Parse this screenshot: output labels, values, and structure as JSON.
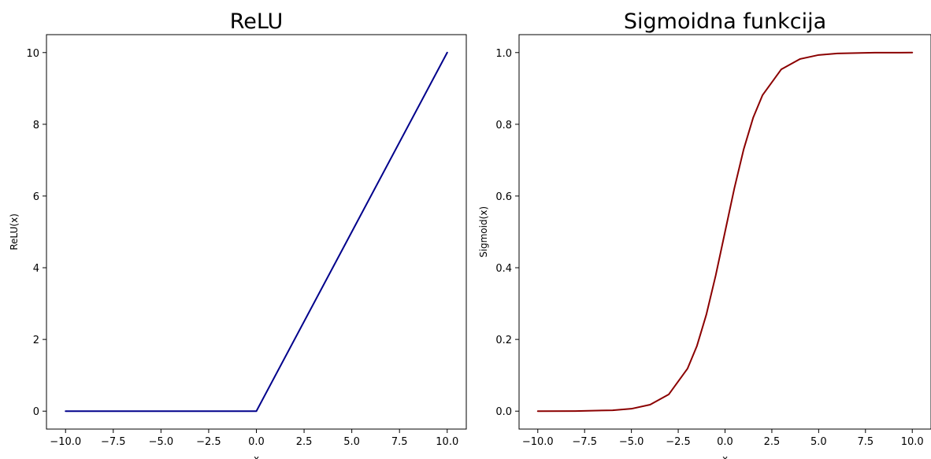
{
  "chart_data": [
    {
      "type": "line",
      "title": "ReLU",
      "xlabel": "x",
      "ylabel": "ReLU(x)",
      "xlim": [
        -11.0,
        11.0
      ],
      "ylim": [
        -0.5,
        10.5
      ],
      "xticks": [
        -10.0,
        -7.5,
        -5.0,
        -2.5,
        0.0,
        2.5,
        5.0,
        7.5,
        10.0
      ],
      "xtick_labels": [
        "−10.0",
        "−7.5",
        "−5.0",
        "−2.5",
        "0.0",
        "2.5",
        "5.0",
        "7.5",
        "10.0"
      ],
      "yticks": [
        0,
        2,
        4,
        6,
        8,
        10
      ],
      "ytick_labels": [
        "0",
        "2",
        "4",
        "6",
        "8",
        "10"
      ],
      "grid": false,
      "series": [
        {
          "color": "#00008b",
          "x": [
            -10,
            -5,
            0,
            5,
            10
          ],
          "y": [
            0,
            0,
            0,
            5,
            10
          ]
        }
      ]
    },
    {
      "type": "line",
      "title": "Sigmoidna funkcija",
      "xlabel": "x",
      "ylabel": "Sigmoid(x)",
      "xlim": [
        -11.0,
        11.0
      ],
      "ylim": [
        -0.05,
        1.05
      ],
      "xticks": [
        -10.0,
        -7.5,
        -5.0,
        -2.5,
        0.0,
        2.5,
        5.0,
        7.5,
        10.0
      ],
      "xtick_labels": [
        "−10.0",
        "−7.5",
        "−5.0",
        "−2.5",
        "0.0",
        "2.5",
        "5.0",
        "7.5",
        "10.0"
      ],
      "yticks": [
        0.0,
        0.2,
        0.4,
        0.6,
        0.8,
        1.0
      ],
      "ytick_labels": [
        "0.0",
        "0.2",
        "0.4",
        "0.6",
        "0.8",
        "1.0"
      ],
      "grid": false,
      "series": [
        {
          "color": "#8b0000",
          "x": [
            -10,
            -8,
            -6,
            -5,
            -4,
            -3,
            -2,
            -1.5,
            -1,
            -0.5,
            0,
            0.5,
            1,
            1.5,
            2,
            3,
            4,
            5,
            6,
            8,
            10
          ],
          "y": [
            5e-05,
            0.0003,
            0.0025,
            0.0067,
            0.018,
            0.047,
            0.119,
            0.182,
            0.269,
            0.378,
            0.5,
            0.622,
            0.731,
            0.818,
            0.881,
            0.953,
            0.982,
            0.9933,
            0.9975,
            0.9997,
            0.99995
          ]
        }
      ]
    }
  ]
}
